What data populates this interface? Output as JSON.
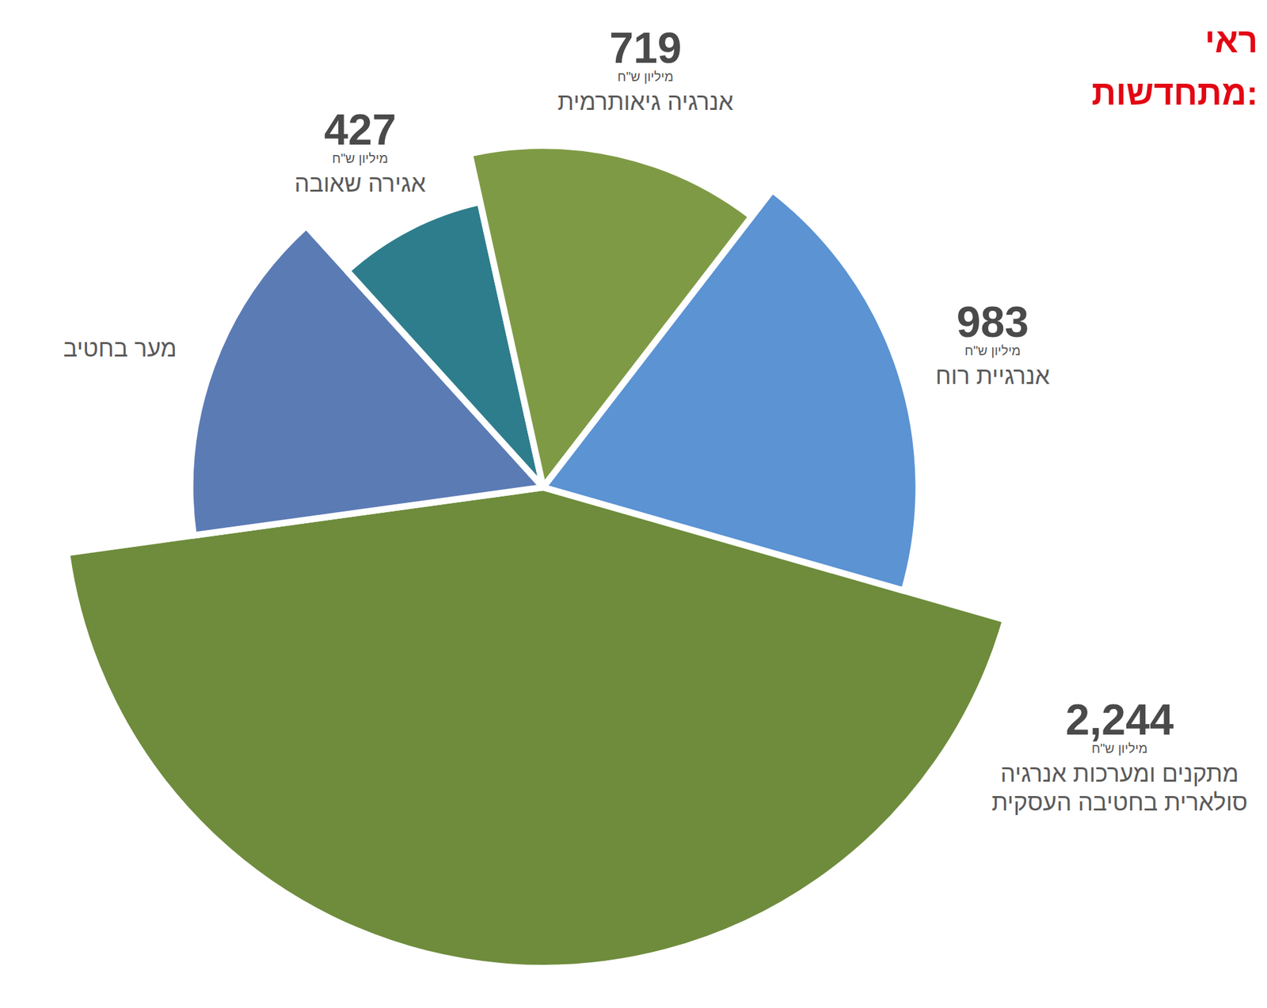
{
  "chart_data": {
    "type": "pie",
    "title": [
      "ראי",
      "מתחדשות:"
    ],
    "categories": [
      "מתקנים ומערכות אנרגיה סולארית בחטיבה העסקית",
      "מער בחטיב",
      "אגירה שאובה",
      "אנרגיה גיאותרמית",
      "אנרגיית רוח"
    ],
    "values": [
      2244,
      800,
      427,
      719,
      983
    ],
    "value_labels": [
      "2,244",
      null,
      "427",
      "719",
      "983"
    ],
    "unit_label": "מיליון ש\"ח",
    "colors": [
      "#6e8c3c",
      "#5b7bb5",
      "#2e7d8c",
      "#7f9a45",
      "#5b93d3"
    ],
    "data_labels": true
  }
}
